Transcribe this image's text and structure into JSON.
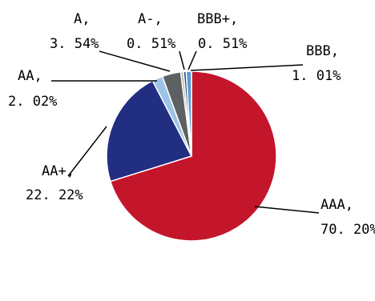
{
  "chart_data": {
    "type": "pie",
    "start_angle_deg": 0,
    "direction": "clockwise",
    "slices": [
      {
        "label": "AAA",
        "value": 70.2,
        "value_text": "70. 20%",
        "color": "#C3162B"
      },
      {
        "label": "AA+",
        "value": 22.22,
        "value_text": "22. 22%",
        "color": "#212E82"
      },
      {
        "label": "AA",
        "value": 2.02,
        "value_text": "2. 02%",
        "color": "#9DC3E6"
      },
      {
        "label": "A",
        "value": 3.54,
        "value_text": "3. 54%",
        "color": "#5E6163"
      },
      {
        "label": "A-",
        "value": 0.51,
        "value_text": "0. 51%",
        "color": "#B8B2A0"
      },
      {
        "label": "BBB+",
        "value": 0.51,
        "value_text": "0. 51%",
        "color": "#1F4E8C"
      },
      {
        "label": "BBB",
        "value": 1.01,
        "value_text": "1. 01%",
        "color": "#5B9BD5"
      }
    ]
  }
}
